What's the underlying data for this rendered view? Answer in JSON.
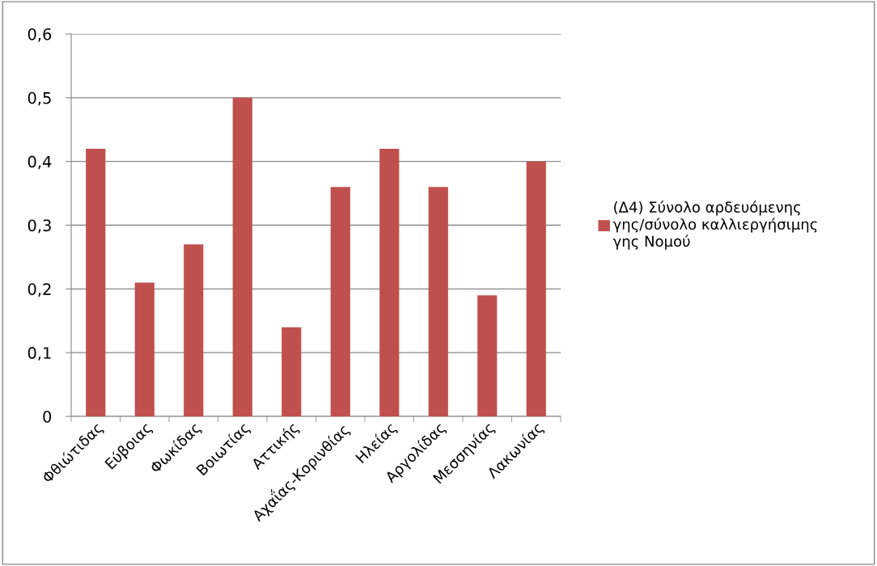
{
  "chart_data": {
    "type": "bar",
    "categories": [
      "Φθιώτιδας",
      "Εύβοιας",
      "Φωκίδας",
      "Βοιωτίας",
      "Αττικής",
      "Αχαΐας-Κορινθίας",
      "Ηλείας",
      "Αργολίδας",
      "Μεσσηνίας",
      "Λακωνίας"
    ],
    "series": [
      {
        "name": "(Δ4) Σύνολο αρδευόμενης\nγης/σύνολο καλλιεργήσιμης\nγης Νομού",
        "color": "#c0504d",
        "values": [
          0.42,
          0.21,
          0.27,
          0.5,
          0.14,
          0.36,
          0.42,
          0.36,
          0.19,
          0.4
        ]
      }
    ],
    "ylim": [
      0,
      0.6
    ],
    "yticks": [
      0,
      {
        "value": 0.1,
        "label": "0,1"
      },
      {
        "value": 0.2,
        "label": "0,2"
      },
      {
        "value": 0.3,
        "label": "0,3"
      },
      {
        "value": 0.4,
        "label": "0,4"
      },
      {
        "value": 0.5,
        "label": "0,5"
      },
      {
        "value": 0.6,
        "label": "0,6"
      }
    ],
    "grid": "y",
    "legend": "right"
  }
}
